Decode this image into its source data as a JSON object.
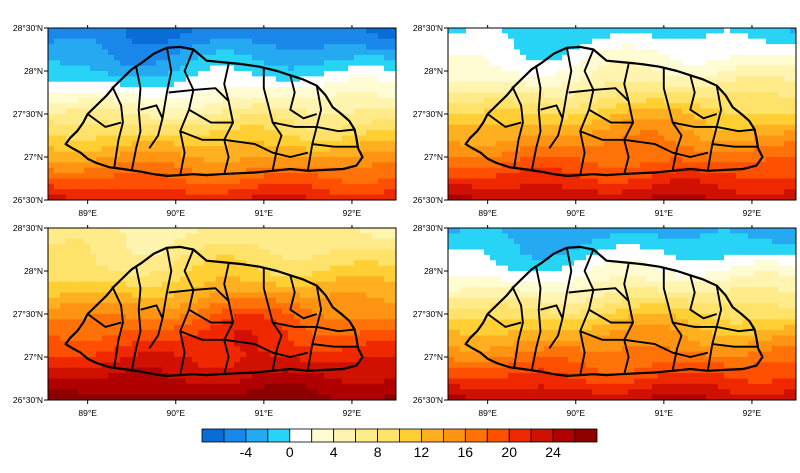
{
  "maps": {
    "lon_labels": [
      "89°E",
      "90°E",
      "91°E",
      "92°E"
    ],
    "lat_labels": [
      "28°30'N",
      "28°N",
      "27°30'N",
      "27°N",
      "26°30'N"
    ],
    "panels": [
      {
        "id": "top-left",
        "mean_anomaly": 0,
        "north_min": -6,
        "south_max": 22
      },
      {
        "id": "top-right",
        "mean_anomaly": 6,
        "north_min": -1,
        "south_max": 24
      },
      {
        "id": "bottom-left",
        "mean_anomaly": 10,
        "north_min": 6,
        "south_max": 27
      },
      {
        "id": "bottom-right",
        "mean_anomaly": 6,
        "north_min": -3,
        "south_max": 24
      }
    ]
  },
  "colorbar": {
    "tick_labels": [
      "-4",
      "0",
      "4",
      "8",
      "12",
      "16",
      "20",
      "24"
    ],
    "tick_values": [
      -4,
      0,
      4,
      8,
      12,
      16,
      20,
      24
    ],
    "boundaries": [
      -8,
      -6,
      -4,
      -2,
      0,
      2,
      4,
      6,
      8,
      10,
      12,
      14,
      16,
      18,
      20,
      22,
      24,
      26,
      28
    ],
    "colors": [
      "#0a6cd6",
      "#1a88ea",
      "#25a9f0",
      "#27d4f5",
      "#ffffff",
      "#fffbd2",
      "#fff4b0",
      "#ffeb8a",
      "#ffe26a",
      "#ffcf33",
      "#ffb020",
      "#ff9412",
      "#ff7208",
      "#ff4f00",
      "#f02800",
      "#d01000",
      "#b00000",
      "#8e0000"
    ]
  }
}
